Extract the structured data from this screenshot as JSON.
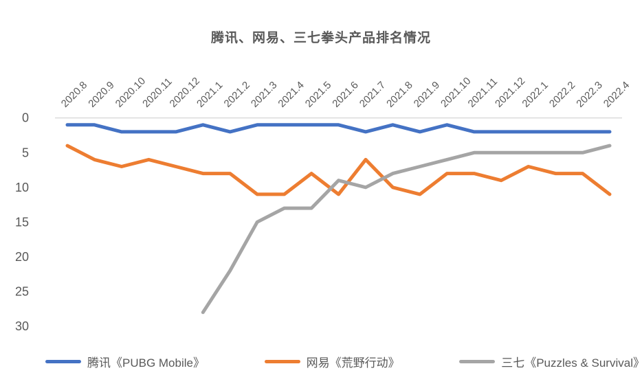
{
  "title": "腾讯、网易、三七拳头产品排名情况",
  "axis": {
    "y_tick_labels": [
      "0",
      "5",
      "10",
      "15",
      "20",
      "25",
      "30"
    ],
    "y_label_color": "#595959",
    "x_label_color": "#595959",
    "axis_line_color": "#d9d9d9"
  },
  "chart_data": {
    "type": "line",
    "title": "腾讯、网易、三七拳头产品排名情况",
    "categories": [
      "2020.8",
      "2020.9",
      "2020.10",
      "2020.11",
      "2020.12",
      "2021.1",
      "2021.2",
      "2021.3",
      "2021.4",
      "2021.5",
      "2021.6",
      "2021.7",
      "2021.8",
      "2021.9",
      "2021.10",
      "2021.11",
      "2021.12",
      "2022.1",
      "2022.2",
      "2022.3",
      "2022.4"
    ],
    "series": [
      {
        "name": "腾讯《PUBG Mobile》",
        "color": "#4472c4",
        "values": [
          1,
          1,
          2,
          2,
          2,
          1,
          2,
          1,
          1,
          1,
          1,
          2,
          1,
          2,
          1,
          2,
          2,
          2,
          2,
          2,
          2
        ]
      },
      {
        "name": "网易《荒野行动》",
        "color": "#ed7d31",
        "values": [
          4,
          6,
          7,
          6,
          7,
          8,
          8,
          11,
          11,
          8,
          11,
          6,
          10,
          11,
          8,
          8,
          9,
          7,
          8,
          8,
          11
        ]
      },
      {
        "name": "三七《Puzzles & Survival》",
        "color": "#a5a5a5",
        "values": [
          null,
          null,
          null,
          null,
          null,
          28,
          22,
          15,
          13,
          13,
          9,
          10,
          8,
          7,
          6,
          5,
          5,
          5,
          5,
          5,
          4
        ]
      }
    ],
    "xlabel": "",
    "ylabel": "",
    "y_axis": {
      "min": 0,
      "max": 30,
      "tick_step": 5,
      "inverted": true
    },
    "x_labels_rotation_deg": 45,
    "grid": "only zero line",
    "legend_position": "bottom"
  }
}
